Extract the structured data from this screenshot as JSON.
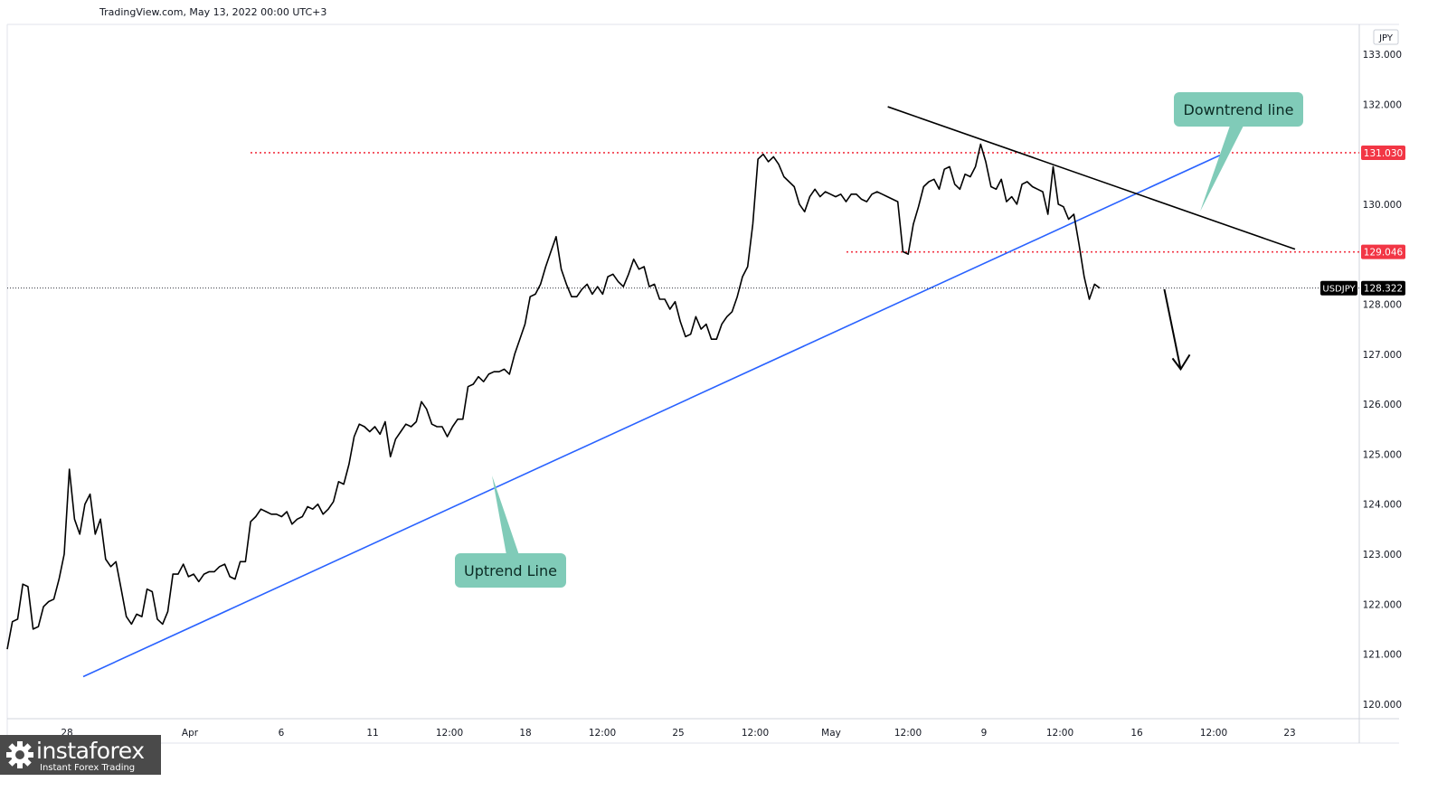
{
  "header": {
    "source": "TradingView.com, May 13, 2022 00:00 UTC+3"
  },
  "annotations": {
    "uptrend_label": "Uptrend Line",
    "downtrend_label": "Downtrend line"
  },
  "brand": {
    "name": "instaforex",
    "tagline": "Instant Forex Trading"
  },
  "colors": {
    "price": "#000000",
    "uptrend": "#2962ff",
    "level": "#f23645",
    "callout": "#80cbb8"
  },
  "chart_data": {
    "type": "line",
    "symbol": "USDJPY",
    "currency": "JPY",
    "last_price": "128.322",
    "ylim": [
      119.75,
      133.2
    ],
    "y_ticks": [
      "133.000",
      "132.000",
      "131.000",
      "130.000",
      "129.000",
      "128.000",
      "127.000",
      "126.000",
      "125.000",
      "124.000",
      "123.000",
      "122.000",
      "121.000",
      "120.000"
    ],
    "x_ticks": [
      "28",
      "Apr",
      "6",
      "11",
      "12:00",
      "18",
      "12:00",
      "25",
      "12:00",
      "May",
      "12:00",
      "9",
      "12:00",
      "16",
      "12:00",
      "23"
    ],
    "levels": [
      {
        "label": "131.030",
        "value": 131.03
      },
      {
        "label": "129.046",
        "value": 129.046
      }
    ],
    "series": [
      {
        "values": [
          121.1,
          121.65,
          121.7,
          122.4,
          122.35,
          121.5,
          121.55,
          121.95,
          122.05,
          122.1,
          122.5,
          123.0,
          124.7,
          123.7,
          123.4,
          124.0,
          124.2,
          123.4,
          123.7,
          122.9,
          122.75,
          122.85,
          122.3,
          121.75,
          121.6,
          121.8,
          121.75,
          122.3,
          122.25,
          121.7,
          121.6,
          121.85,
          122.6,
          122.6,
          122.8,
          122.55,
          122.6,
          122.45,
          122.6,
          122.65,
          122.65,
          122.75,
          122.8,
          122.55,
          122.5,
          122.85,
          122.85,
          123.65,
          123.75,
          123.9,
          123.85,
          123.8,
          123.8,
          123.75,
          123.85,
          123.6,
          123.7,
          123.75,
          123.95,
          123.9,
          124.0,
          123.8,
          123.9,
          124.05,
          124.45,
          124.4,
          124.8,
          125.35,
          125.6,
          125.55,
          125.45,
          125.55,
          125.4,
          125.65,
          124.95,
          125.3,
          125.45,
          125.6,
          125.55,
          125.65,
          126.05,
          125.9,
          125.6,
          125.55,
          125.55,
          125.35,
          125.55,
          125.7,
          125.7,
          126.35,
          126.4,
          126.55,
          126.45,
          126.6,
          126.65,
          126.65,
          126.7,
          126.6,
          127.0,
          127.3,
          127.6,
          128.15,
          128.2,
          128.4,
          128.75,
          129.05,
          129.35,
          128.7,
          128.4,
          128.15,
          128.15,
          128.3,
          128.4,
          128.2,
          128.35,
          128.2,
          128.55,
          128.6,
          128.45,
          128.35,
          128.6,
          128.9,
          128.7,
          128.75,
          128.35,
          128.4,
          128.1,
          128.1,
          127.9,
          128.05,
          127.65,
          127.35,
          127.4,
          127.75,
          127.5,
          127.6,
          127.3,
          127.3,
          127.6,
          127.75,
          127.85,
          128.15,
          128.55,
          128.75,
          129.6,
          130.9,
          131.0,
          130.85,
          130.95,
          130.8,
          130.55,
          130.45,
          130.35,
          130.0,
          129.85,
          130.15,
          130.3,
          130.15,
          130.25,
          130.2,
          130.15,
          130.2,
          130.05,
          130.2,
          130.2,
          130.1,
          130.05,
          130.2,
          130.25,
          130.2,
          130.15,
          130.1,
          130.05,
          129.05,
          129.0,
          129.6,
          129.95,
          130.35,
          130.45,
          130.5,
          130.3,
          130.7,
          130.75,
          130.4,
          130.3,
          130.6,
          130.55,
          130.75,
          131.2,
          130.85,
          130.35,
          130.3,
          130.5,
          130.05,
          130.15,
          130.0,
          130.4,
          130.45,
          130.35,
          130.3,
          130.25,
          129.8,
          130.75,
          130.0,
          129.95,
          129.7,
          129.8,
          129.2,
          128.55,
          128.1,
          128.4,
          128.322
        ]
      }
    ],
    "trendlines": [
      {
        "name": "uptrend",
        "x1": 2.9,
        "y1": 120.55,
        "x2": 48.2,
        "y2": 131.0
      },
      {
        "name": "downtrend",
        "x1": 34.9,
        "y1": 131.95,
        "x2": 51.1,
        "y2": 129.1
      }
    ],
    "projection": {
      "x1": 45.9,
      "y1": 128.3,
      "x2": 46.55,
      "y2": 126.7
    }
  }
}
